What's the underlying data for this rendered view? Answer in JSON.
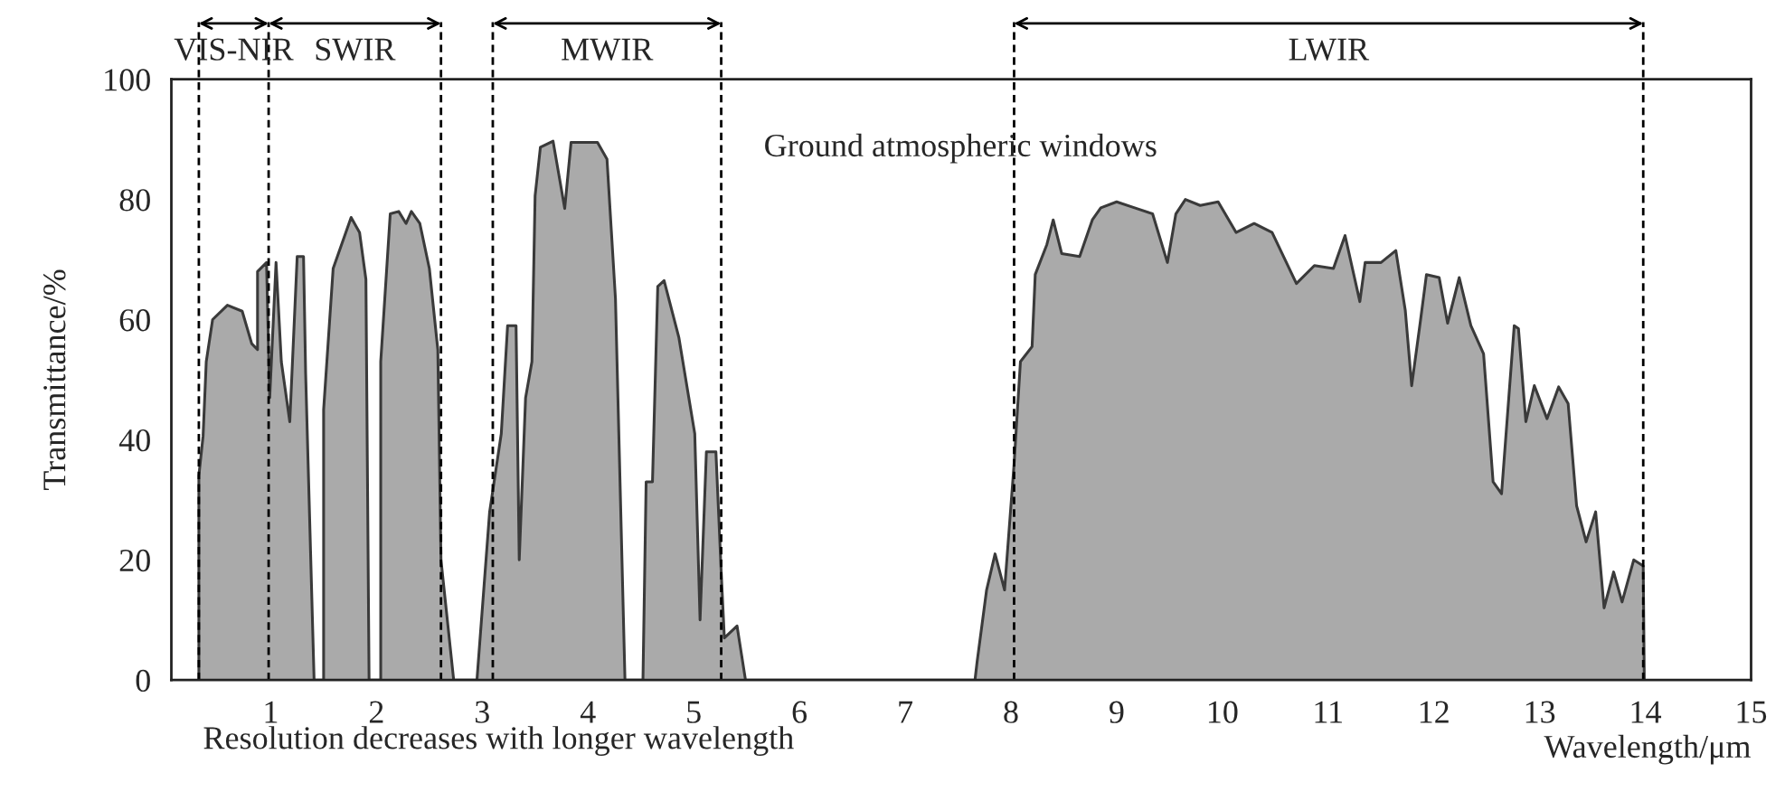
{
  "chart_data": {
    "type": "area",
    "xlabel": "Wavelength/μm",
    "ylabel": "Transmittance/%",
    "xlim": [
      0.06,
      15
    ],
    "xticks": [
      1,
      2,
      3,
      4,
      5,
      6,
      7,
      8,
      9,
      10,
      11,
      12,
      13,
      14,
      15
    ],
    "ylim": [
      0,
      100
    ],
    "yticks": [
      0,
      20,
      40,
      60,
      80,
      100
    ],
    "grid": false,
    "series": [
      {
        "color": "#aaaaaa",
        "x": [
          0.32,
          0.32,
          0.36,
          0.39,
          0.45,
          0.59,
          0.73,
          0.82,
          0.875,
          0.875,
          0.96,
          0.99,
          1.05,
          1.1,
          1.18,
          1.25,
          1.31,
          1.33,
          1.41,
          1.5,
          1.5,
          1.59,
          1.76,
          1.84,
          1.9,
          1.93,
          2.04,
          2.04,
          2.13,
          2.21,
          2.28,
          2.33,
          2.41,
          2.5,
          2.58,
          2.61,
          2.73,
          2.95,
          3.07,
          3.18,
          3.24,
          3.32,
          3.35,
          3.41,
          3.47,
          3.5,
          3.55,
          3.67,
          3.78,
          3.84,
          4.09,
          4.18,
          4.26,
          4.35,
          4.52,
          4.55,
          4.61,
          4.66,
          4.72,
          4.86,
          5.01,
          5.06,
          5.12,
          5.21,
          5.26,
          5.29,
          5.41,
          5.49,
          7.66,
          7.68,
          7.77,
          7.85,
          7.94,
          8.03,
          8.09,
          8.2,
          8.23,
          8.34,
          8.4,
          8.48,
          8.65,
          8.77,
          8.85,
          9.0,
          9.17,
          9.34,
          9.48,
          9.56,
          9.65,
          9.79,
          9.96,
          10.13,
          10.3,
          10.47,
          10.7,
          10.87,
          11.05,
          11.16,
          11.3,
          11.35,
          11.5,
          11.64,
          11.73,
          11.79,
          11.87,
          11.93,
          12.05,
          12.13,
          12.24,
          12.35,
          12.47,
          12.56,
          12.64,
          12.76,
          12.8,
          12.87,
          12.95,
          13.07,
          13.18,
          13.27,
          13.35,
          13.44,
          13.53,
          13.61,
          13.7,
          13.78,
          13.89,
          13.98,
          13.99
        ],
        "values": [
          0,
          34,
          40.6,
          53,
          60,
          62.4,
          61.4,
          56,
          55,
          68,
          69.5,
          47,
          69.5,
          53,
          43,
          70.5,
          70.5,
          51,
          0,
          0,
          45,
          68.5,
          77,
          74.5,
          66.7,
          0,
          0,
          53,
          77.6,
          78,
          76,
          78,
          76,
          68.5,
          55,
          20,
          0,
          0,
          28,
          41,
          59,
          59,
          20,
          47,
          53,
          80.6,
          88.7,
          89.7,
          78.5,
          89.5,
          89.5,
          86.7,
          63.5,
          0,
          0,
          33,
          33,
          65.5,
          66.5,
          57,
          41,
          10,
          38,
          38,
          18,
          7,
          9,
          0,
          0,
          3,
          15,
          21,
          15,
          36,
          53,
          55.5,
          67.5,
          72.5,
          76.6,
          71,
          70.5,
          76.6,
          78.6,
          79.6,
          78.6,
          77.6,
          69.5,
          77.6,
          80,
          79,
          79.6,
          74.5,
          76,
          74.5,
          66,
          69,
          68.5,
          74,
          63,
          69.5,
          69.5,
          71.5,
          61.5,
          49,
          59.4,
          67.5,
          67,
          59.4,
          67,
          59,
          54.3,
          33,
          31,
          59,
          58.5,
          43,
          49,
          43.5,
          48.8,
          46,
          29,
          23,
          28,
          12,
          18,
          13,
          20,
          19,
          0
        ]
      }
    ],
    "ref_lines": [
      {
        "axis": "x",
        "value": 0.32,
        "line_style": "dashed"
      },
      {
        "axis": "x",
        "value": 0.98,
        "line_style": "dashed"
      },
      {
        "axis": "x",
        "value": 2.61,
        "line_style": "dashed"
      },
      {
        "axis": "x",
        "value": 3.1,
        "line_style": "dashed"
      },
      {
        "axis": "x",
        "value": 5.26,
        "line_style": "dashed"
      },
      {
        "axis": "x",
        "value": 8.03,
        "line_style": "dashed"
      },
      {
        "axis": "x",
        "value": 13.98,
        "line_style": "dashed"
      }
    ],
    "annotations": [
      "VIS-NIR",
      "SWIR",
      "MWIR",
      "LWIR",
      "Ground atmospheric windows",
      "Resolution decreases with longer wavelength"
    ]
  }
}
